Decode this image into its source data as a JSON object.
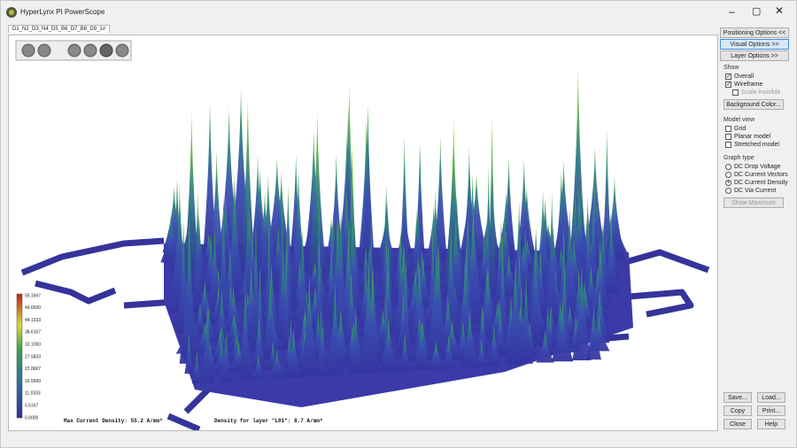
{
  "window": {
    "title": "HyperLynx PI PowerScope",
    "tab": "D1_N2_D3_N4_D5_B6_D7_B8_D9_1#"
  },
  "plot": {
    "status_left": "Max Current Density: 55.2 A/mm²",
    "status_right": "Density for layer \"L01\": 8.7 A/mm²",
    "legend_labels": [
      "55.1667",
      "49.6500",
      "44.1333",
      "38.6167",
      "33.1000",
      "27.5833",
      "22.0667",
      "16.5500",
      "11.0333",
      "5.5167",
      "0.0000"
    ]
  },
  "panel": {
    "top_buttons": [
      "Positioning Options <<",
      "Visual Options >>",
      "Layer Options >>"
    ],
    "show": {
      "title": "Show",
      "items": [
        {
          "label": "Overall",
          "checked": true
        },
        {
          "label": "Wireframe",
          "checked": true
        },
        {
          "label": "Scale invisible",
          "checked": false
        }
      ],
      "button": "Background Color..."
    },
    "model_view": {
      "title": "Model view",
      "items": [
        {
          "label": "Grid",
          "checked": false
        },
        {
          "label": "Planar model",
          "checked": false
        },
        {
          "label": "Stretched model",
          "checked": false
        }
      ]
    },
    "graph_type": {
      "title": "Graph type",
      "items": [
        {
          "label": "DC Drop Voltage",
          "checked": false
        },
        {
          "label": "DC Current Vectors",
          "checked": false
        },
        {
          "label": "DC Current Density",
          "checked": true
        },
        {
          "label": "DC Via Current",
          "checked": false
        }
      ],
      "button": "Show Maximum"
    },
    "bottom_buttons": [
      "Save...",
      "Load...",
      "Copy",
      "Print...",
      "Close",
      "Help"
    ]
  }
}
